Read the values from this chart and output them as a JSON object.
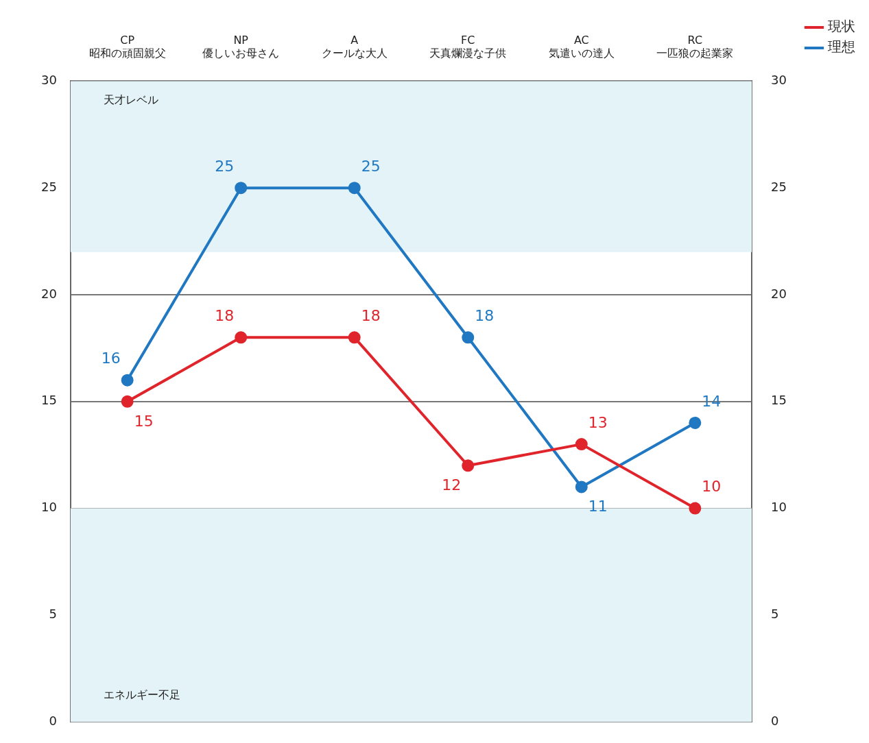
{
  "chart_data": {
    "type": "line",
    "categories": [
      "CP\n昭和の頑固親父",
      "NP\n優しいお母さん",
      "A\nクールな大人",
      "FC\n天真爛漫な子供",
      "AC\n気遣いの達人",
      "RC\n一匹狼の起業家"
    ],
    "series": [
      {
        "name": "現状",
        "color": "#e0242b",
        "values": [
          15,
          18,
          18,
          12,
          13,
          10
        ]
      },
      {
        "name": "理想",
        "color": "#1f78c1",
        "values": [
          16,
          25,
          25,
          18,
          11,
          14
        ]
      }
    ],
    "ylim": [
      0,
      30
    ],
    "yticks": [
      0,
      5,
      10,
      15,
      20,
      25,
      30
    ],
    "y2lim": [
      0,
      30
    ],
    "y2ticks": [
      0,
      5,
      10,
      15,
      20,
      25,
      30
    ],
    "bands": [
      {
        "axis": "y",
        "from": 22,
        "to": 30,
        "label": "天才レベル",
        "color": "#e4f3f8"
      },
      {
        "axis": "y",
        "from": 0,
        "to": 10,
        "label": "エネルギー不足",
        "color": "#e4f3f8"
      }
    ],
    "grid": "y",
    "legend": "top right",
    "marker": "circle",
    "line_style": "solid",
    "data_labels": true
  }
}
